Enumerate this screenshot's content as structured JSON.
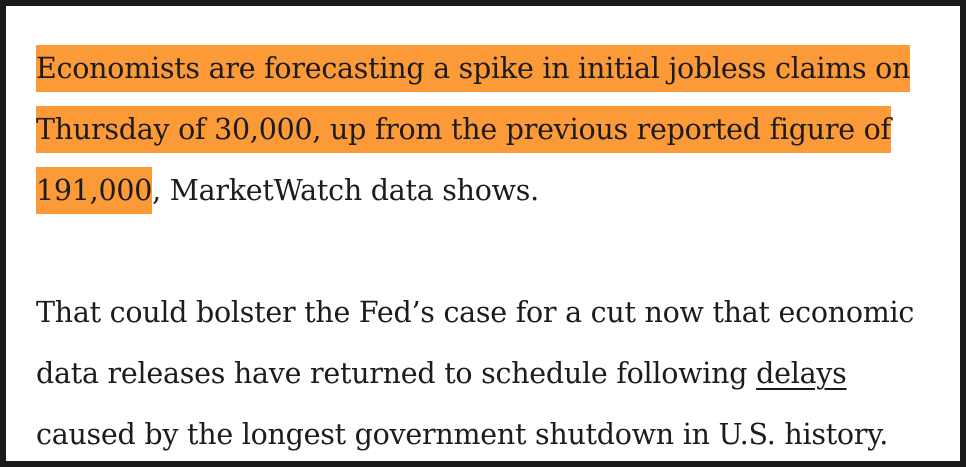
{
  "colors": {
    "highlight": "#fc9a38",
    "text": "#1c1c1c",
    "border": "#1b1b1b",
    "background": "#ffffff"
  },
  "paragraph1": {
    "line1": "Economists are forecasting a spike in initial jobless claims on",
    "line2": "Thursday of 30,000, up from the previous reported figure of",
    "line3_highlight": "191,000",
    "line3_rest": ", MarketWatch data shows."
  },
  "paragraph2": {
    "line1": "That could bolster the Fed’s case for a cut now that economic",
    "line2_before": "data releases have returned to schedule following ",
    "link_text": "delays",
    "line3": "caused by the longest government shutdown in U.S. history."
  }
}
